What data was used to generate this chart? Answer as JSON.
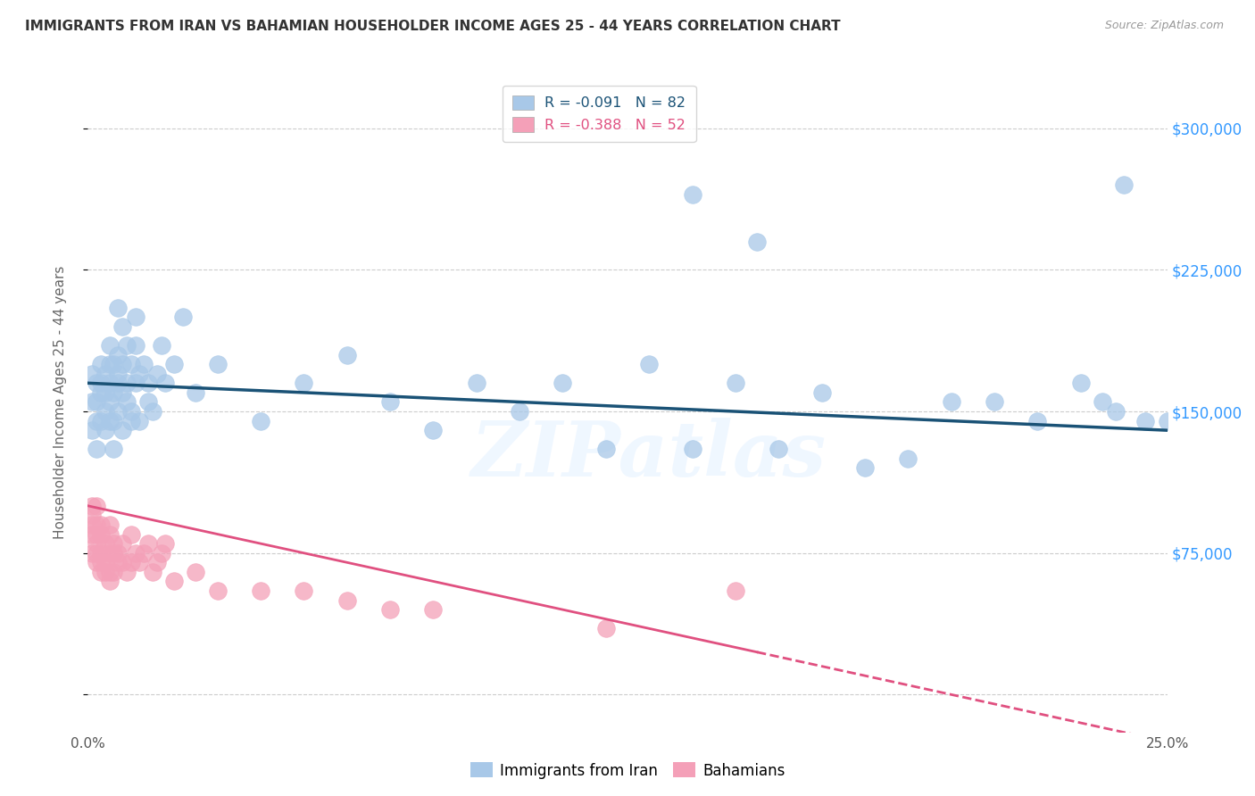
{
  "title": "IMMIGRANTS FROM IRAN VS BAHAMIAN HOUSEHOLDER INCOME AGES 25 - 44 YEARS CORRELATION CHART",
  "source_text": "Source: ZipAtlas.com",
  "ylabel": "Householder Income Ages 25 - 44 years",
  "xlim": [
    0.0,
    0.25
  ],
  "ylim": [
    -20000,
    330000
  ],
  "yticks": [
    0,
    75000,
    150000,
    225000,
    300000
  ],
  "yticklabels": [
    "",
    "$75,000",
    "$150,000",
    "$225,000",
    "$300,000"
  ],
  "legend_r1": "R = -0.091",
  "legend_n1": "N = 82",
  "legend_r2": "R = -0.388",
  "legend_n2": "N = 52",
  "blue_color": "#a8c8e8",
  "pink_color": "#f4a0b8",
  "line_blue": "#1a5276",
  "line_pink": "#e05080",
  "title_color": "#333333",
  "right_tick_color": "#3399ff",
  "watermark": "ZIPatlas",
  "iran_x": [
    0.001,
    0.001,
    0.001,
    0.002,
    0.002,
    0.002,
    0.002,
    0.003,
    0.003,
    0.003,
    0.003,
    0.004,
    0.004,
    0.004,
    0.004,
    0.005,
    0.005,
    0.005,
    0.005,
    0.005,
    0.006,
    0.006,
    0.006,
    0.006,
    0.007,
    0.007,
    0.007,
    0.007,
    0.007,
    0.008,
    0.008,
    0.008,
    0.008,
    0.009,
    0.009,
    0.009,
    0.01,
    0.01,
    0.01,
    0.011,
    0.011,
    0.011,
    0.012,
    0.012,
    0.013,
    0.014,
    0.014,
    0.015,
    0.016,
    0.017,
    0.018,
    0.02,
    0.022,
    0.025,
    0.03,
    0.04,
    0.05,
    0.06,
    0.07,
    0.08,
    0.09,
    0.1,
    0.11,
    0.12,
    0.13,
    0.14,
    0.15,
    0.16,
    0.17,
    0.18,
    0.19,
    0.2,
    0.21,
    0.22,
    0.23,
    0.235,
    0.238,
    0.24,
    0.245,
    0.25,
    0.14,
    0.155
  ],
  "iran_y": [
    155000,
    140000,
    170000,
    155000,
    130000,
    145000,
    165000,
    160000,
    175000,
    145000,
    165000,
    150000,
    170000,
    140000,
    160000,
    155000,
    175000,
    145000,
    165000,
    185000,
    160000,
    175000,
    145000,
    130000,
    180000,
    205000,
    165000,
    150000,
    170000,
    160000,
    195000,
    175000,
    140000,
    165000,
    185000,
    155000,
    175000,
    150000,
    145000,
    200000,
    165000,
    185000,
    170000,
    145000,
    175000,
    165000,
    155000,
    150000,
    170000,
    185000,
    165000,
    175000,
    200000,
    160000,
    175000,
    145000,
    165000,
    180000,
    155000,
    140000,
    165000,
    150000,
    165000,
    130000,
    175000,
    130000,
    165000,
    130000,
    160000,
    120000,
    125000,
    155000,
    155000,
    145000,
    165000,
    155000,
    150000,
    270000,
    145000,
    145000,
    265000,
    240000
  ],
  "bahamas_x": [
    0.001,
    0.001,
    0.001,
    0.001,
    0.001,
    0.002,
    0.002,
    0.002,
    0.002,
    0.002,
    0.002,
    0.003,
    0.003,
    0.003,
    0.003,
    0.003,
    0.004,
    0.004,
    0.004,
    0.005,
    0.005,
    0.005,
    0.005,
    0.005,
    0.006,
    0.006,
    0.006,
    0.007,
    0.007,
    0.008,
    0.008,
    0.009,
    0.01,
    0.01,
    0.011,
    0.012,
    0.013,
    0.014,
    0.015,
    0.016,
    0.017,
    0.018,
    0.02,
    0.025,
    0.03,
    0.04,
    0.05,
    0.06,
    0.07,
    0.08,
    0.12,
    0.15
  ],
  "bahamas_y": [
    100000,
    95000,
    85000,
    90000,
    75000,
    100000,
    90000,
    80000,
    85000,
    70000,
    75000,
    85000,
    75000,
    90000,
    65000,
    70000,
    80000,
    70000,
    65000,
    85000,
    75000,
    65000,
    90000,
    60000,
    75000,
    65000,
    80000,
    70000,
    75000,
    70000,
    80000,
    65000,
    85000,
    70000,
    75000,
    70000,
    75000,
    80000,
    65000,
    70000,
    75000,
    80000,
    60000,
    65000,
    55000,
    55000,
    55000,
    50000,
    45000,
    45000,
    35000,
    55000
  ]
}
